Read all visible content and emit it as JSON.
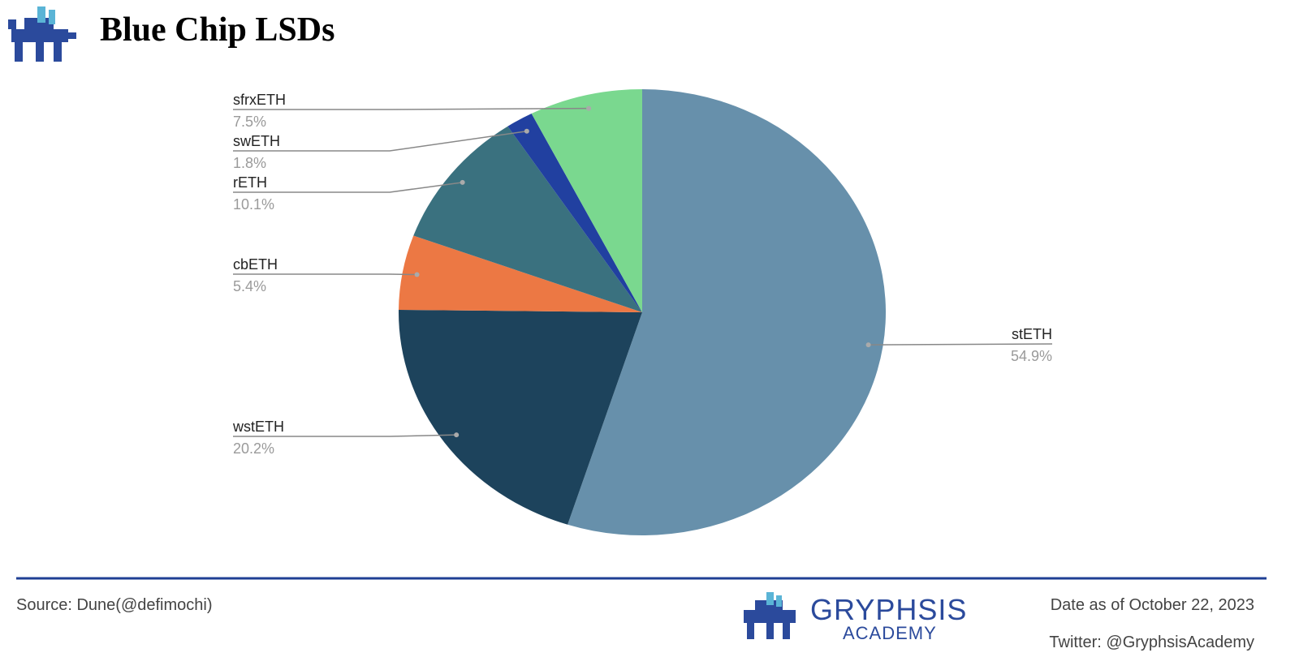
{
  "chart_data": {
    "type": "pie",
    "title": "Blue Chip LSDs",
    "categories": [
      "stETH",
      "wstETH",
      "cbETH",
      "rETH",
      "swETH",
      "sfrxETH"
    ],
    "values": [
      54.9,
      20.2,
      5.4,
      10.1,
      1.8,
      7.5
    ],
    "value_labels": [
      "54.9%",
      "20.2%",
      "5.4%",
      "10.1%",
      "1.8%",
      "7.5%"
    ],
    "colors": [
      "#6790ab",
      "#1d435c",
      "#ec7844",
      "#3a717f",
      "#2140a0",
      "#7ad88f"
    ]
  },
  "footer": {
    "source": "Source: Dune(@defimochi)",
    "brand": "GRYPHSIS",
    "brand_sub": "ACADEMY",
    "date": "Date as of October 22, 2023",
    "twitter": "Twitter: @GryphsisAcademy"
  }
}
